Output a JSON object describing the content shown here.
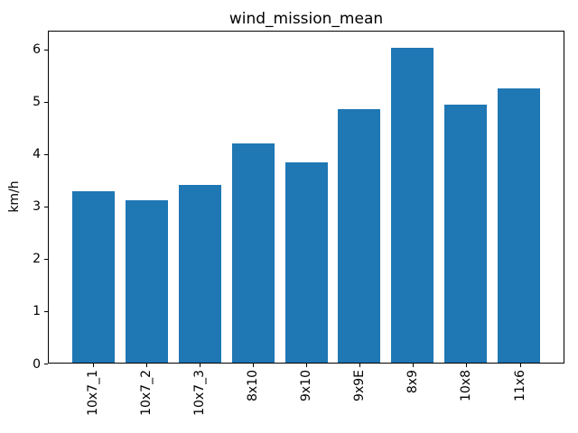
{
  "chart_data": {
    "type": "bar",
    "title": "wind_mission_mean",
    "xlabel": "",
    "ylabel": "km/h",
    "categories": [
      "10x7_1",
      "10x7_2",
      "10x7_3",
      "8x10",
      "9x10",
      "9x9E",
      "8x9",
      "10x8",
      "11x6"
    ],
    "values": [
      3.27,
      3.1,
      3.4,
      4.19,
      3.82,
      4.84,
      6.02,
      4.93,
      5.24
    ],
    "yticks": [
      0,
      1,
      2,
      3,
      4,
      5,
      6
    ],
    "ylim": [
      0,
      6.36
    ],
    "bar_color": "#1f77b4",
    "axis_color": "#000000",
    "background_color": "#ffffff",
    "grid": false,
    "legend_position": "none"
  }
}
